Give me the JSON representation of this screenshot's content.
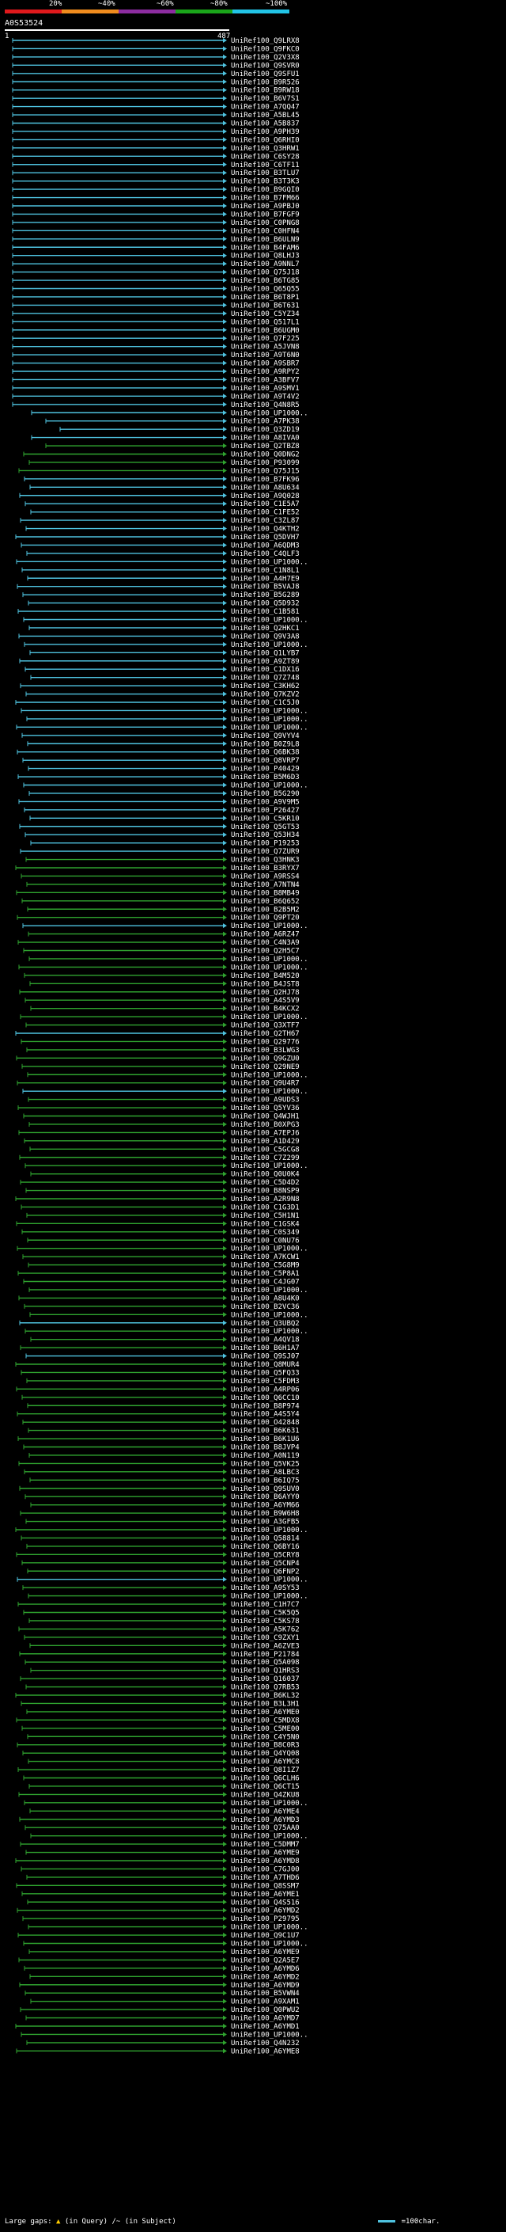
{
  "scale": {
    "labels": [
      "20%",
      "~40%",
      "~60%",
      "~80%",
      "~100%"
    ],
    "colors": [
      "#e0191c",
      "#f08c1e",
      "#8c2ca0",
      "#1aa51a",
      "#22c4e6"
    ]
  },
  "query": {
    "id": "A0S53524",
    "start": "1",
    "end": "487"
  },
  "legend": {
    "gaps_label": "Large gaps:",
    "in_query": "(in Query)",
    "in_subject": "/~ (in Subject)",
    "scale_label": "=100char."
  },
  "colors": {
    "cyan": "#4fc3e0",
    "green": "#2fa32f",
    "gap": "#111111"
  },
  "hits": [
    {
      "label": "UniRef100_Q9LRX8",
      "color": "cyan"
    },
    {
      "label": "UniRef100_Q9FKC0",
      "color": "cyan"
    },
    {
      "label": "UniRef100_Q2V3X8",
      "color": "cyan"
    },
    {
      "label": "UniRef100_Q9SVR0",
      "color": "cyan"
    },
    {
      "label": "UniRef100_Q9SFU1",
      "color": "cyan"
    },
    {
      "label": "UniRef100_B9R526",
      "color": "cyan"
    },
    {
      "label": "UniRef100_B9RW18",
      "color": "cyan"
    },
    {
      "label": "UniRef100_B6V7S1",
      "color": "cyan"
    },
    {
      "label": "UniRef100_A7QQ47",
      "color": "cyan"
    },
    {
      "label": "UniRef100_A5BL45",
      "color": "cyan"
    },
    {
      "label": "UniRef100_A5B837",
      "color": "cyan"
    },
    {
      "label": "UniRef100_A9PH39",
      "color": "cyan"
    },
    {
      "label": "UniRef100_Q6RHI0",
      "color": "cyan"
    },
    {
      "label": "UniRef100_Q3HRW1",
      "color": "cyan"
    },
    {
      "label": "UniRef100_C6SY28",
      "color": "cyan"
    },
    {
      "label": "UniRef100_C6TF11",
      "color": "cyan"
    },
    {
      "label": "UniRef100_B3TLU7",
      "color": "cyan"
    },
    {
      "label": "UniRef100_B3T3K3",
      "color": "cyan"
    },
    {
      "label": "UniRef100_B9GQI0",
      "color": "cyan"
    },
    {
      "label": "UniRef100_B7FM66",
      "color": "cyan"
    },
    {
      "label": "UniRef100_A9PBJ0",
      "color": "cyan"
    },
    {
      "label": "UniRef100_B7FGF9",
      "color": "cyan"
    },
    {
      "label": "UniRef100_C0PNG8",
      "color": "cyan"
    },
    {
      "label": "UniRef100_C0HFN4",
      "color": "cyan"
    },
    {
      "label": "UniRef100_B6ULN9",
      "color": "cyan"
    },
    {
      "label": "UniRef100_B4FAM6",
      "color": "cyan"
    },
    {
      "label": "UniRef100_Q8LHJ3",
      "color": "cyan"
    },
    {
      "label": "UniRef100_A9NNL7",
      "color": "cyan"
    },
    {
      "label": "UniRef100_Q75J18",
      "color": "cyan"
    },
    {
      "label": "UniRef100_B6TG85",
      "color": "cyan"
    },
    {
      "label": "UniRef100_Q65Q55",
      "color": "cyan"
    },
    {
      "label": "UniRef100_B6T8P1",
      "color": "cyan"
    },
    {
      "label": "UniRef100_B6T631",
      "color": "cyan"
    },
    {
      "label": "UniRef100_C5YZ34",
      "color": "cyan"
    },
    {
      "label": "UniRef100_Q517L1",
      "color": "cyan"
    },
    {
      "label": "UniRef100_B6UGM0",
      "color": "cyan"
    },
    {
      "label": "UniRef100_Q7F225",
      "color": "cyan"
    },
    {
      "label": "UniRef100_A5JVN8",
      "color": "cyan"
    },
    {
      "label": "UniRef100_A9T6N0",
      "color": "cyan"
    },
    {
      "label": "UniRef100_A9SBR7",
      "color": "cyan"
    },
    {
      "label": "UniRef100_A9RPY2",
      "color": "cyan"
    },
    {
      "label": "UniRef100_A3BFV7",
      "color": "cyan"
    },
    {
      "label": "UniRef100_A9SMV1",
      "color": "cyan"
    },
    {
      "label": "UniRef100_A9T4V2",
      "color": "cyan"
    },
    {
      "label": "UniRef100_Q4N8R5",
      "color": "cyan"
    },
    {
      "label": "UniRef100_UP1000..",
      "color": "cyan"
    },
    {
      "label": "UniRef100_A7PK38",
      "color": "cyan"
    },
    {
      "label": "UniRef100_Q3ZD19",
      "color": "cyan"
    },
    {
      "label": "UniRef100_A8IVA0",
      "color": "cyan"
    },
    {
      "label": "UniRef100_Q2TBZ8",
      "color": "green"
    },
    {
      "label": "UniRef100_Q0DNG2",
      "color": "green"
    },
    {
      "label": "UniRef100_P93099",
      "color": "green"
    },
    {
      "label": "UniRef100_Q75J15",
      "color": "green"
    },
    {
      "label": "UniRef100_B7FK96",
      "color": "cyan"
    },
    {
      "label": "UniRef100_A8U634",
      "color": "cyan"
    },
    {
      "label": "UniRef100_A9Q028",
      "color": "cyan"
    },
    {
      "label": "UniRef100_C1E5A7",
      "color": "cyan"
    },
    {
      "label": "UniRef100_C1FE52",
      "color": "cyan"
    },
    {
      "label": "UniRef100_C3ZL87",
      "color": "cyan"
    },
    {
      "label": "UniRef100_Q4KTH2",
      "color": "cyan"
    },
    {
      "label": "UniRef100_Q5DVH7",
      "color": "cyan"
    },
    {
      "label": "UniRef100_A6QDM3",
      "color": "cyan"
    },
    {
      "label": "UniRef100_C4QLF3",
      "color": "cyan"
    },
    {
      "label": "UniRef100_UP1000..",
      "color": "cyan"
    },
    {
      "label": "UniRef100_C1N8L1",
      "color": "cyan"
    },
    {
      "label": "UniRef100_A4H7E9",
      "color": "cyan"
    },
    {
      "label": "UniRef100_B5VAJ8",
      "color": "cyan"
    },
    {
      "label": "UniRef100_B5G289",
      "color": "cyan"
    },
    {
      "label": "UniRef100_Q5D932",
      "color": "cyan"
    },
    {
      "label": "UniRef100_C1B581",
      "color": "cyan"
    },
    {
      "label": "UniRef100_UP1000..",
      "color": "cyan"
    },
    {
      "label": "UniRef100_Q2HKC1",
      "color": "cyan"
    },
    {
      "label": "UniRef100_Q9V3A8",
      "color": "cyan"
    },
    {
      "label": "UniRef100_UP1000..",
      "color": "cyan"
    },
    {
      "label": "UniRef100_Q1LYB7",
      "color": "cyan"
    },
    {
      "label": "UniRef100_A9ZT89",
      "color": "cyan"
    },
    {
      "label": "UniRef100_C1DX16",
      "color": "cyan"
    },
    {
      "label": "UniRef100_Q7Z748",
      "color": "cyan"
    },
    {
      "label": "UniRef100_C3KH62",
      "color": "cyan"
    },
    {
      "label": "UniRef100_Q7KZV2",
      "color": "cyan"
    },
    {
      "label": "UniRef100_C1C5J0",
      "color": "cyan"
    },
    {
      "label": "UniRef100_UP1000..",
      "color": "cyan"
    },
    {
      "label": "UniRef100_UP1000..",
      "color": "cyan"
    },
    {
      "label": "UniRef100_UP1000..",
      "color": "cyan"
    },
    {
      "label": "UniRef100_Q9VYV4",
      "color": "cyan"
    },
    {
      "label": "UniRef100_B0Z9L8",
      "color": "cyan"
    },
    {
      "label": "UniRef100_Q6BK38",
      "color": "cyan"
    },
    {
      "label": "UniRef100_Q8VRP7",
      "color": "cyan"
    },
    {
      "label": "UniRef100_P40429",
      "color": "cyan"
    },
    {
      "label": "UniRef100_B5M6D3",
      "color": "cyan"
    },
    {
      "label": "UniRef100_UP1000..",
      "color": "cyan"
    },
    {
      "label": "UniRef100_B5G290",
      "color": "cyan"
    },
    {
      "label": "UniRef100_A9V9M5",
      "color": "cyan"
    },
    {
      "label": "UniRef100_P26427",
      "color": "cyan"
    },
    {
      "label": "UniRef100_C5KR10",
      "color": "cyan"
    },
    {
      "label": "UniRef100_Q5GT53",
      "color": "cyan"
    },
    {
      "label": "UniRef100_Q53H34",
      "color": "cyan"
    },
    {
      "label": "UniRef100_P19253",
      "color": "cyan"
    },
    {
      "label": "UniRef100_Q7ZUR9",
      "color": "cyan"
    },
    {
      "label": "UniRef100_Q3HNK3",
      "color": "green"
    },
    {
      "label": "UniRef100_B3RYX7",
      "color": "green"
    },
    {
      "label": "UniRef100_A9RSS4",
      "color": "green"
    },
    {
      "label": "UniRef100_A7NTN4",
      "color": "green"
    },
    {
      "label": "UniRef100_B8MB49",
      "color": "green"
    },
    {
      "label": "UniRef100_B6Q652",
      "color": "green"
    },
    {
      "label": "UniRef100_B2B5M2",
      "color": "green"
    },
    {
      "label": "UniRef100_Q9PT20",
      "color": "green"
    },
    {
      "label": "UniRef100_UP1000..",
      "color": "cyan"
    },
    {
      "label": "UniRef100_A6RZ47",
      "color": "green"
    },
    {
      "label": "UniRef100_C4N3A9",
      "color": "green"
    },
    {
      "label": "UniRef100_Q2H5C7",
      "color": "green"
    },
    {
      "label": "UniRef100_UP1000..",
      "color": "green"
    },
    {
      "label": "UniRef100_UP1000..",
      "color": "green"
    },
    {
      "label": "UniRef100_B4M520",
      "color": "green"
    },
    {
      "label": "UniRef100_B4JST8",
      "color": "green"
    },
    {
      "label": "UniRef100_Q2HJ78",
      "color": "green"
    },
    {
      "label": "UniRef100_A4S5V9",
      "color": "green"
    },
    {
      "label": "UniRef100_B4KCX2",
      "color": "green"
    },
    {
      "label": "UniRef100_UP1000..",
      "color": "green"
    },
    {
      "label": "UniRef100_Q3XTF7",
      "color": "green"
    },
    {
      "label": "UniRef100_Q2TH67",
      "color": "cyan"
    },
    {
      "label": "UniRef100_Q29776",
      "color": "green"
    },
    {
      "label": "UniRef100_B3LWG3",
      "color": "green"
    },
    {
      "label": "UniRef100_Q9GZU0",
      "color": "green"
    },
    {
      "label": "UniRef100_Q29NE9",
      "color": "green"
    },
    {
      "label": "UniRef100_UP1000..",
      "color": "green"
    },
    {
      "label": "UniRef100_Q9U4R7",
      "color": "green"
    },
    {
      "label": "UniRef100_UP1000..",
      "color": "cyan"
    },
    {
      "label": "UniRef100_A9UDS3",
      "color": "green"
    },
    {
      "label": "UniRef100_Q5YV36",
      "color": "green"
    },
    {
      "label": "UniRef100_Q4WJH1",
      "color": "green"
    },
    {
      "label": "UniRef100_B0XPG3",
      "color": "green"
    },
    {
      "label": "UniRef100_A7EPJ6",
      "color": "green"
    },
    {
      "label": "UniRef100_A1D429",
      "color": "green"
    },
    {
      "label": "UniRef100_C5GCG8",
      "color": "green"
    },
    {
      "label": "UniRef100_C7Z299",
      "color": "green"
    },
    {
      "label": "UniRef100_UP1000..",
      "color": "green"
    },
    {
      "label": "UniRef100_Q0U0K4",
      "color": "green"
    },
    {
      "label": "UniRef100_C5D4D2",
      "color": "green"
    },
    {
      "label": "UniRef100_B8NSP9",
      "color": "green"
    },
    {
      "label": "UniRef100_A2R9N8",
      "color": "green"
    },
    {
      "label": "UniRef100_C1G3D1",
      "color": "green"
    },
    {
      "label": "UniRef100_C5H1N1",
      "color": "green"
    },
    {
      "label": "UniRef100_C1GSK4",
      "color": "green"
    },
    {
      "label": "UniRef100_C0S349",
      "color": "green"
    },
    {
      "label": "UniRef100_C0NU76",
      "color": "green"
    },
    {
      "label": "UniRef100_UP1000..",
      "color": "green"
    },
    {
      "label": "UniRef100_A7KCW1",
      "color": "green"
    },
    {
      "label": "UniRef100_C5G8M9",
      "color": "green"
    },
    {
      "label": "UniRef100_C5P8A1",
      "color": "green"
    },
    {
      "label": "UniRef100_C4JG07",
      "color": "green"
    },
    {
      "label": "UniRef100_UP1000..",
      "color": "green"
    },
    {
      "label": "UniRef100_A8U4K0",
      "color": "green"
    },
    {
      "label": "UniRef100_B2VC36",
      "color": "green"
    },
    {
      "label": "UniRef100_UP1000..",
      "color": "green"
    },
    {
      "label": "UniRef100_Q3UBQ2",
      "color": "cyan"
    },
    {
      "label": "UniRef100_UP1000..",
      "color": "green"
    },
    {
      "label": "UniRef100_A4QV18",
      "color": "green"
    },
    {
      "label": "UniRef100_B6H1A7",
      "color": "green"
    },
    {
      "label": "UniRef100_Q9SJ07",
      "color": "cyan"
    },
    {
      "label": "UniRef100_Q8MUR4",
      "color": "green"
    },
    {
      "label": "UniRef100_Q5FQ33",
      "color": "green"
    },
    {
      "label": "UniRef100_C5FDM3",
      "color": "green"
    },
    {
      "label": "UniRef100_A4RP06",
      "color": "green"
    },
    {
      "label": "UniRef100_Q6CC10",
      "color": "green"
    },
    {
      "label": "UniRef100_B8P974",
      "color": "green"
    },
    {
      "label": "UniRef100_A4S5Y4",
      "color": "green"
    },
    {
      "label": "UniRef100_O42848",
      "color": "green"
    },
    {
      "label": "UniRef100_B6K631",
      "color": "green"
    },
    {
      "label": "UniRef100_B6K1U6",
      "color": "green"
    },
    {
      "label": "UniRef100_B8JVP4",
      "color": "green"
    },
    {
      "label": "UniRef100_A0N119",
      "color": "green"
    },
    {
      "label": "UniRef100_Q5VK25",
      "color": "green"
    },
    {
      "label": "UniRef100_A8LBC3",
      "color": "green"
    },
    {
      "label": "UniRef100_B6IQ75",
      "color": "green"
    },
    {
      "label": "UniRef100_Q9SUV0",
      "color": "green"
    },
    {
      "label": "UniRef100_B6AYY0",
      "color": "green"
    },
    {
      "label": "UniRef100_A6YM66",
      "color": "green"
    },
    {
      "label": "UniRef100_B9W6H8",
      "color": "green"
    },
    {
      "label": "UniRef100_A3GFB5",
      "color": "green"
    },
    {
      "label": "UniRef100_UP1000..",
      "color": "green"
    },
    {
      "label": "UniRef100_Q58814",
      "color": "green"
    },
    {
      "label": "UniRef100_Q6BY16",
      "color": "green"
    },
    {
      "label": "UniRef100_Q5CRY8",
      "color": "green"
    },
    {
      "label": "UniRef100_Q5CNP4",
      "color": "green"
    },
    {
      "label": "UniRef100_Q6FNP2",
      "color": "green"
    },
    {
      "label": "UniRef100_UP1000..",
      "color": "cyan"
    },
    {
      "label": "UniRef100_A9SY53",
      "color": "green"
    },
    {
      "label": "UniRef100_UP1000..",
      "color": "green"
    },
    {
      "label": "UniRef100_C1H7C7",
      "color": "green"
    },
    {
      "label": "UniRef100_C5K5Q5",
      "color": "green"
    },
    {
      "label": "UniRef100_C5KS78",
      "color": "green"
    },
    {
      "label": "UniRef100_A5K762",
      "color": "green"
    },
    {
      "label": "UniRef100_C9ZXY1",
      "color": "green"
    },
    {
      "label": "UniRef100_A6ZVE3",
      "color": "green"
    },
    {
      "label": "UniRef100_P21784",
      "color": "green"
    },
    {
      "label": "UniRef100_Q5A098",
      "color": "green"
    },
    {
      "label": "UniRef100_Q1HRS3",
      "color": "green"
    },
    {
      "label": "UniRef100_Q16037",
      "color": "green"
    },
    {
      "label": "UniRef100_Q7RB53",
      "color": "green"
    },
    {
      "label": "UniRef100_B6KL32",
      "color": "green"
    },
    {
      "label": "UniRef100_B3L3H1",
      "color": "green"
    },
    {
      "label": "UniRef100_A6YME0",
      "color": "green"
    },
    {
      "label": "UniRef100_C5MDX8",
      "color": "green"
    },
    {
      "label": "UniRef100_C5ME00",
      "color": "green"
    },
    {
      "label": "UniRef100_C4Y5N0",
      "color": "green"
    },
    {
      "label": "UniRef100_B8C0R3",
      "color": "green"
    },
    {
      "label": "UniRef100_Q4YQ08",
      "color": "green"
    },
    {
      "label": "UniRef100_A6YMC8",
      "color": "green"
    },
    {
      "label": "UniRef100_Q8I1Z7",
      "color": "green"
    },
    {
      "label": "UniRef100_Q6CLH6",
      "color": "green"
    },
    {
      "label": "UniRef100_Q6CT15",
      "color": "green"
    },
    {
      "label": "UniRef100_Q4ZKU8",
      "color": "green"
    },
    {
      "label": "UniRef100_UP1000..",
      "color": "green"
    },
    {
      "label": "UniRef100_A6YME4",
      "color": "green"
    },
    {
      "label": "UniRef100_A6YMD3",
      "color": "green"
    },
    {
      "label": "UniRef100_Q75AA0",
      "color": "green"
    },
    {
      "label": "UniRef100_UP1000..",
      "color": "green"
    },
    {
      "label": "UniRef100_C5DMM7",
      "color": "green"
    },
    {
      "label": "UniRef100_A6YME9",
      "color": "green"
    },
    {
      "label": "UniRef100_A6YMD8",
      "color": "green"
    },
    {
      "label": "UniRef100_C7GJ00",
      "color": "green"
    },
    {
      "label": "UniRef100_A7THD6",
      "color": "green"
    },
    {
      "label": "UniRef100_Q8SSM7",
      "color": "green"
    },
    {
      "label": "UniRef100_A6YME1",
      "color": "green"
    },
    {
      "label": "UniRef100_Q4S516",
      "color": "green"
    },
    {
      "label": "UniRef100_A6YMD2",
      "color": "green"
    },
    {
      "label": "UniRef100_P29795",
      "color": "green"
    },
    {
      "label": "UniRef100_UP1000..",
      "color": "green"
    },
    {
      "label": "UniRef100_Q9C1U7",
      "color": "green"
    },
    {
      "label": "UniRef100_UP1000..",
      "color": "green"
    },
    {
      "label": "UniRef100_A6YME9",
      "color": "green"
    },
    {
      "label": "UniRef100_Q2A5E7",
      "color": "green"
    },
    {
      "label": "UniRef100_A6YMD6",
      "color": "green"
    },
    {
      "label": "UniRef100_A6YMD2",
      "color": "green"
    },
    {
      "label": "UniRef100_A6YMD9",
      "color": "green"
    },
    {
      "label": "UniRef100_B5VWN4",
      "color": "green"
    },
    {
      "label": "UniRef100_A9XAM1",
      "color": "green"
    },
    {
      "label": "UniRef100_Q0PWU2",
      "color": "green"
    },
    {
      "label": "UniRef100_A6YMD7",
      "color": "green"
    },
    {
      "label": "UniRef100_A6YMD1",
      "color": "green"
    },
    {
      "label": "UniRef100_UP1000..",
      "color": "green"
    },
    {
      "label": "UniRef100_Q4N232",
      "color": "green"
    },
    {
      "label": "UniRef100_A6YME8",
      "color": "green"
    }
  ]
}
